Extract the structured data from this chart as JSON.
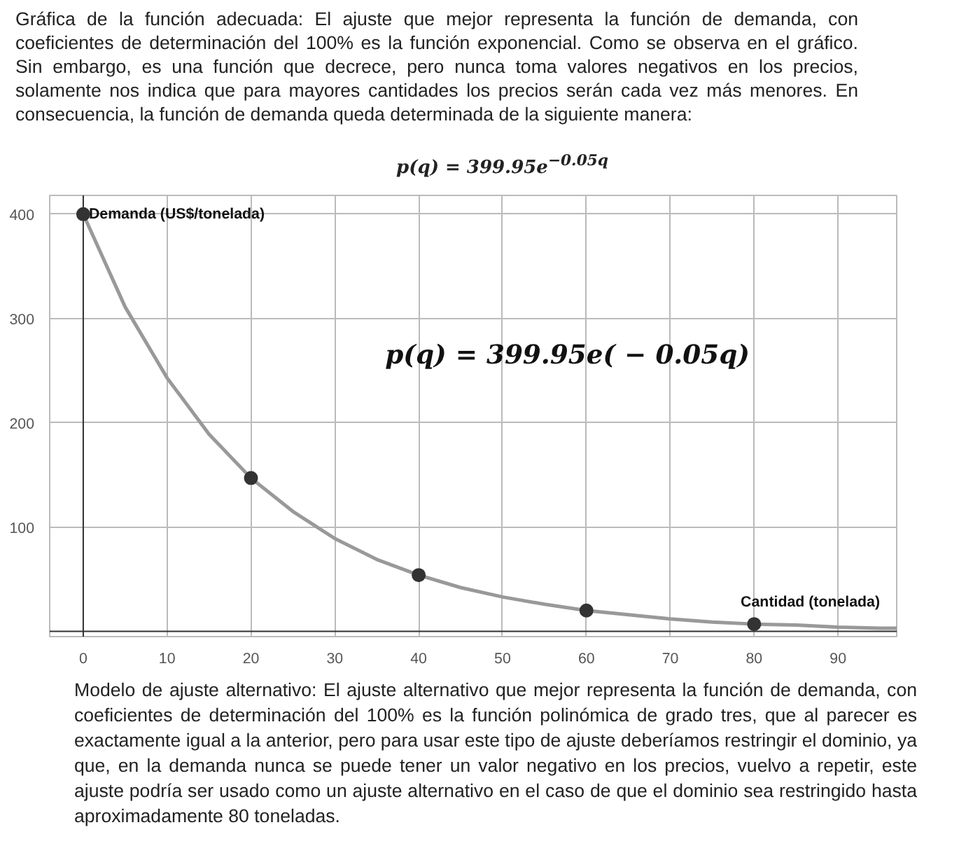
{
  "chart_data": {
    "type": "scatter",
    "title": "Gráfica de la función adecuada: El ajuste que mejor representa la función de demanda, con coeficientes de determinación del 100% es la función exponencial. Como se observa en el gráfico. Sin embargo, es una función que decrece, pero nunca toma valores negativos en los precios, solamente nos indica que para mayores cantidades los precios serán cada vez más menores. En consecuencia, la función de demanda queda determinada de la siguiente manera:",
    "subtitle": "p(q) = 399.95e$^{−0.05q}$",
    "xlabel": "Cantidad (tonelada)",
    "ylabel": "Demanda (US$/tonelada)",
    "annotations": [
      "p(q) = 399.95e( − 0.05q)",
      "Modelo de ajuste alternativo: El ajuste alternativo que mejor representa la función de demanda, con coeficientes de determinación del 100% es la función polinómica de grado tres, que al parecer es exactamente igual a la anterior, pero para usar este tipo de ajuste deberíamos restringir el dominio, ya que, en la demanda nunca se puede tener un valor negativo en los precios, vuelvo a repetir, este ajuste podría ser usado como un ajuste alternativo en el caso de que el dominio sea restringido hasta aproximadamente 80 toneladas."
    ],
    "series": [
      {
        "type": "line",
        "marker": "none",
        "color": "#999999",
        "x": [
          0,
          5,
          10,
          15,
          20,
          25,
          30,
          35,
          40,
          45,
          50,
          55,
          60,
          65,
          70,
          75,
          80,
          85,
          90,
          95,
          97
        ],
        "values": [
          400,
          311,
          243,
          189,
          147,
          115,
          89,
          69,
          54,
          42,
          33,
          26,
          20,
          16,
          12,
          9,
          7,
          6,
          4,
          3,
          3
        ]
      },
      {
        "marker": "circle",
        "color": "#333333",
        "x": [
          0,
          20,
          40,
          60,
          80
        ],
        "values": [
          400,
          147,
          54,
          20,
          7
        ]
      }
    ],
    "grid": true,
    "xlim": [
      -4,
      97
    ],
    "ylim": [
      -5,
      418
    ],
    "xticks": [
      0,
      10,
      20,
      30,
      40,
      50,
      60,
      70,
      80,
      90
    ],
    "yticks": [
      100,
      200,
      300,
      400
    ]
  }
}
